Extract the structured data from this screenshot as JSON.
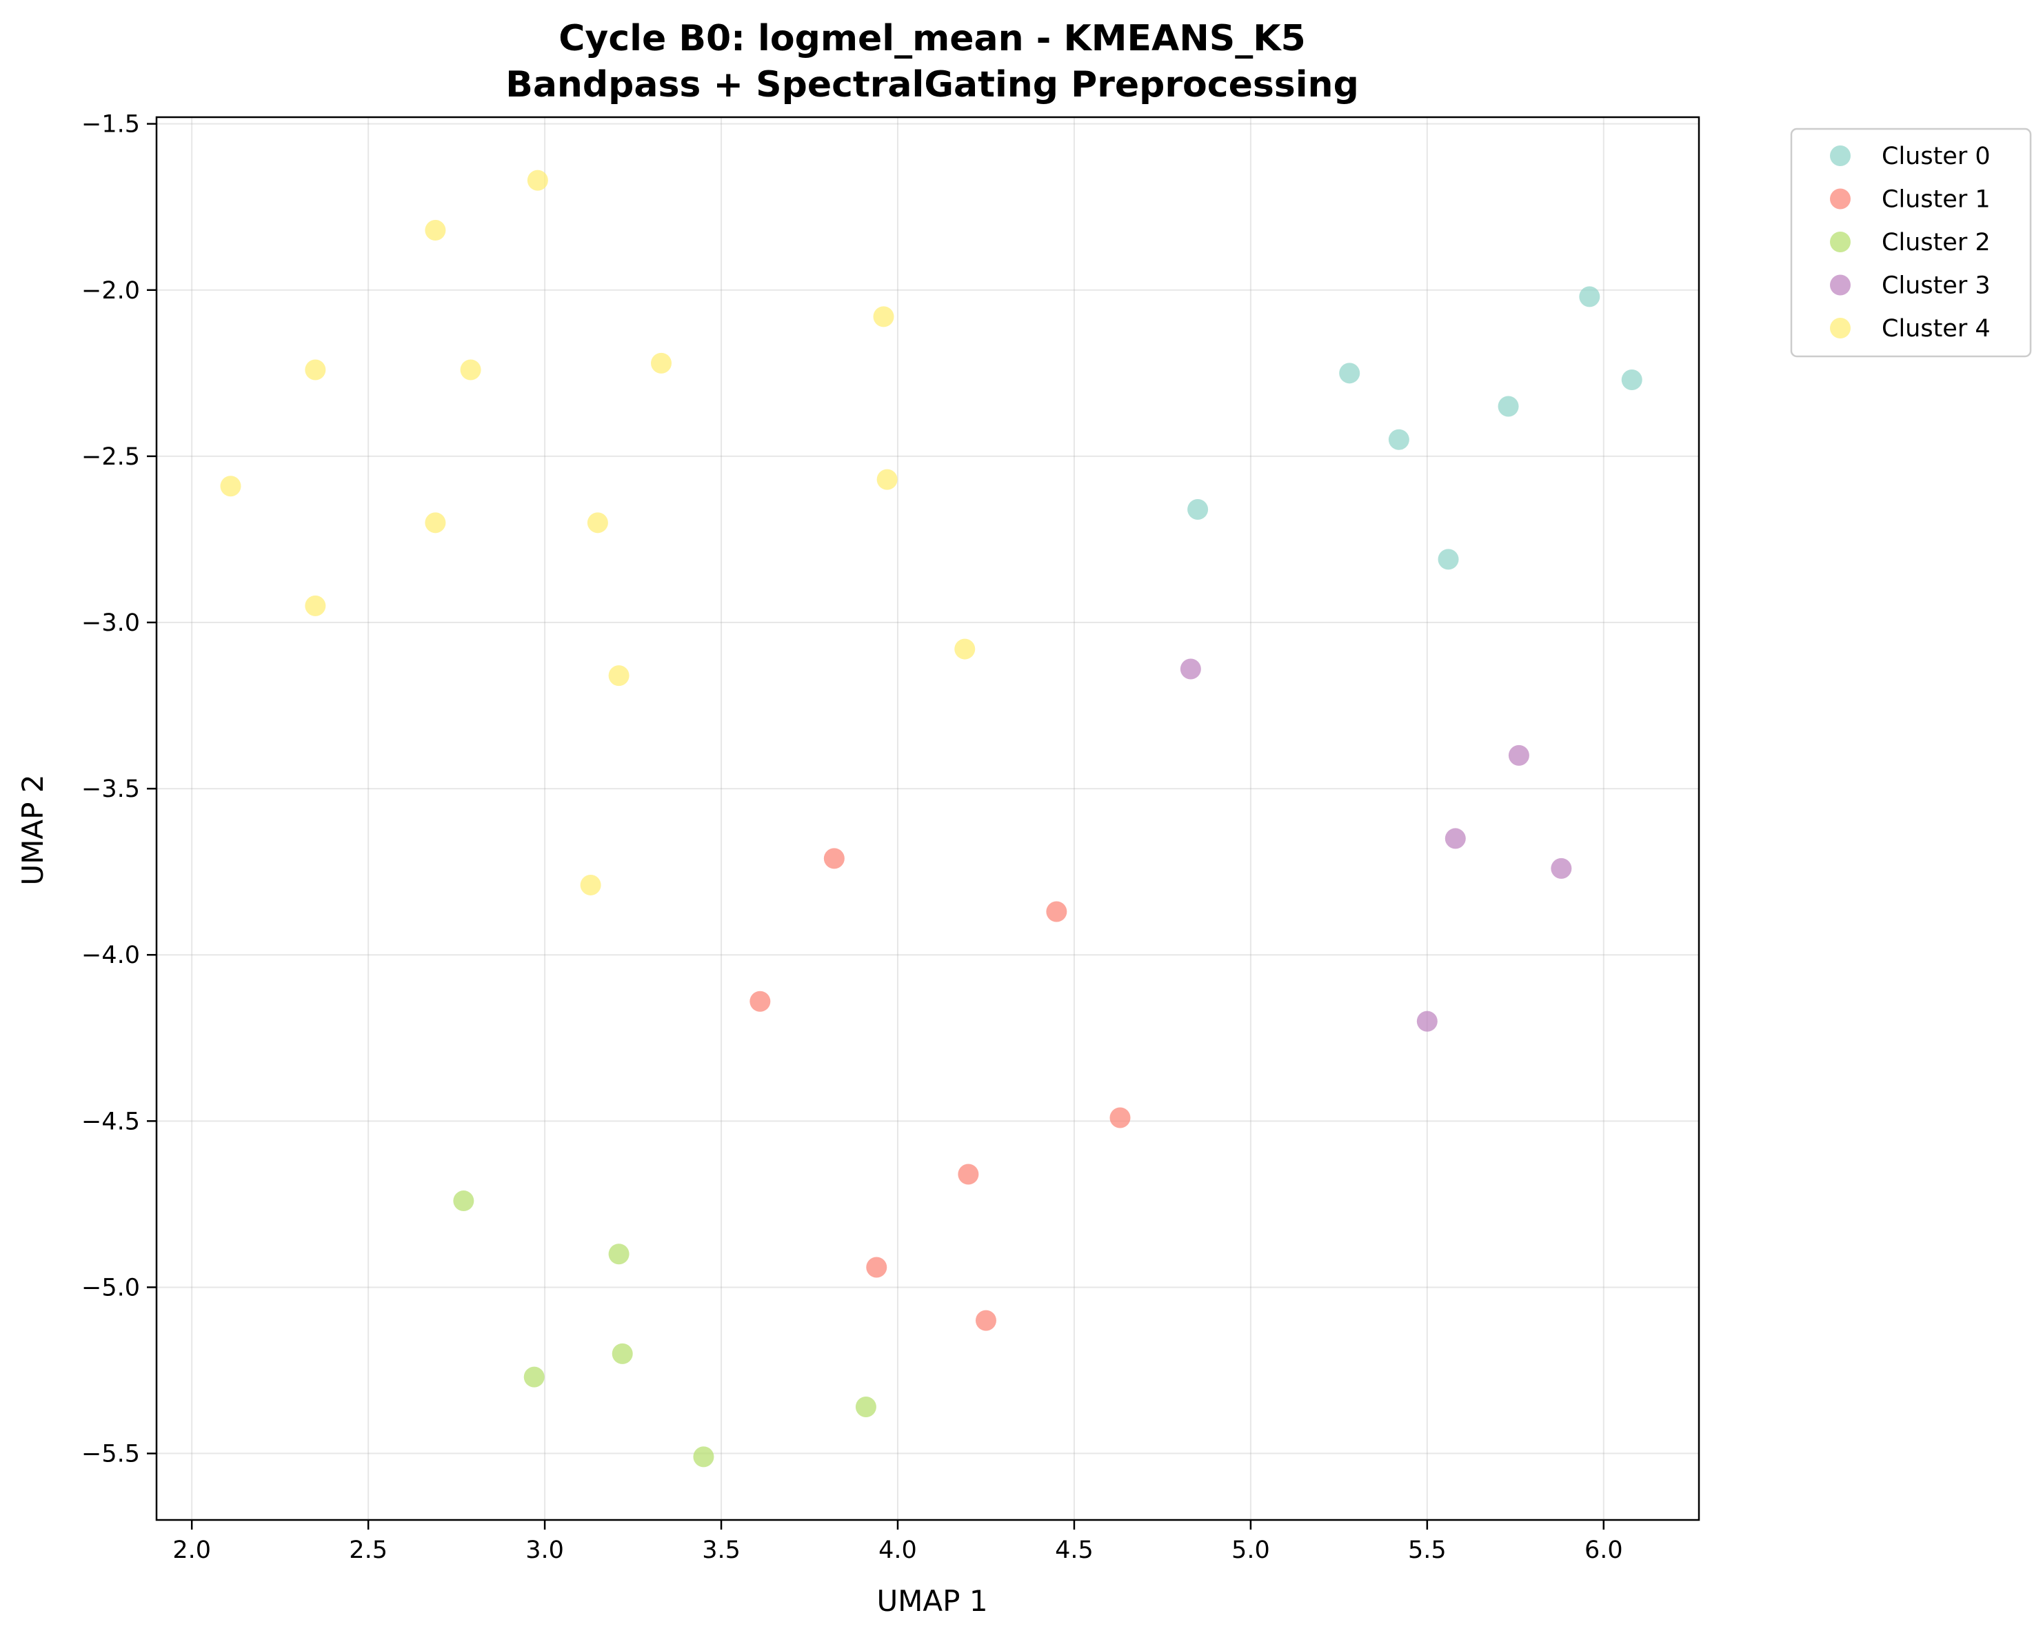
{
  "chart_data": {
    "type": "scatter",
    "title": "Cycle B0: logmel_mean - KMEANS_K5",
    "subtitle": "Bandpass + SpectralGating Preprocessing",
    "xlabel": "UMAP 1",
    "ylabel": "UMAP 2",
    "xlim": [
      1.9,
      6.27
    ],
    "ylim": [
      -5.7,
      -1.48
    ],
    "xticks": [
      "2.0",
      "2.5",
      "3.0",
      "3.5",
      "4.0",
      "4.5",
      "5.0",
      "5.5",
      "6.0"
    ],
    "yticks": [
      "−1.5",
      "−2.0",
      "−2.5",
      "−3.0",
      "−3.5",
      "−4.0",
      "−4.5",
      "−5.0",
      "−5.5"
    ],
    "xtick_values": [
      2.0,
      2.5,
      3.0,
      3.5,
      4.0,
      4.5,
      5.0,
      5.5,
      6.0
    ],
    "ytick_values": [
      -1.5,
      -2.0,
      -2.5,
      -3.0,
      -3.5,
      -4.0,
      -4.5,
      -5.0,
      -5.5
    ],
    "grid": true,
    "legend_position": "outside top-right",
    "series": [
      {
        "name": "Cluster 0",
        "color": "#8dd3c7",
        "points": [
          [
            5.96,
            -2.02
          ],
          [
            6.08,
            -2.27
          ],
          [
            5.28,
            -2.25
          ],
          [
            5.73,
            -2.35
          ],
          [
            5.42,
            -2.45
          ],
          [
            4.85,
            -2.66
          ],
          [
            5.56,
            -2.81
          ]
        ]
      },
      {
        "name": "Cluster 1",
        "color": "#fb8072",
        "points": [
          [
            3.82,
            -3.71
          ],
          [
            4.45,
            -3.87
          ],
          [
            3.61,
            -4.14
          ],
          [
            4.63,
            -4.49
          ],
          [
            4.2,
            -4.66
          ],
          [
            3.94,
            -4.94
          ],
          [
            4.25,
            -5.1
          ]
        ]
      },
      {
        "name": "Cluster 2",
        "color": "#b3de69",
        "points": [
          [
            2.77,
            -4.74
          ],
          [
            3.21,
            -4.9
          ],
          [
            2.97,
            -5.27
          ],
          [
            3.22,
            -5.2
          ],
          [
            3.91,
            -5.36
          ],
          [
            3.45,
            -5.51
          ]
        ]
      },
      {
        "name": "Cluster 3",
        "color": "#bc80bd",
        "points": [
          [
            4.83,
            -3.14
          ],
          [
            5.76,
            -3.4
          ],
          [
            5.58,
            -3.65
          ],
          [
            5.88,
            -3.74
          ],
          [
            5.5,
            -4.2
          ]
        ]
      },
      {
        "name": "Cluster 4",
        "color": "#ffed6f",
        "points": [
          [
            2.98,
            -1.67
          ],
          [
            2.69,
            -1.82
          ],
          [
            3.96,
            -2.08
          ],
          [
            3.33,
            -2.22
          ],
          [
            2.35,
            -2.24
          ],
          [
            2.79,
            -2.24
          ],
          [
            2.11,
            -2.59
          ],
          [
            3.97,
            -2.57
          ],
          [
            2.69,
            -2.7
          ],
          [
            3.15,
            -2.7
          ],
          [
            2.35,
            -2.95
          ],
          [
            4.19,
            -3.08
          ],
          [
            3.21,
            -3.16
          ],
          [
            3.13,
            -3.79
          ]
        ]
      }
    ]
  }
}
